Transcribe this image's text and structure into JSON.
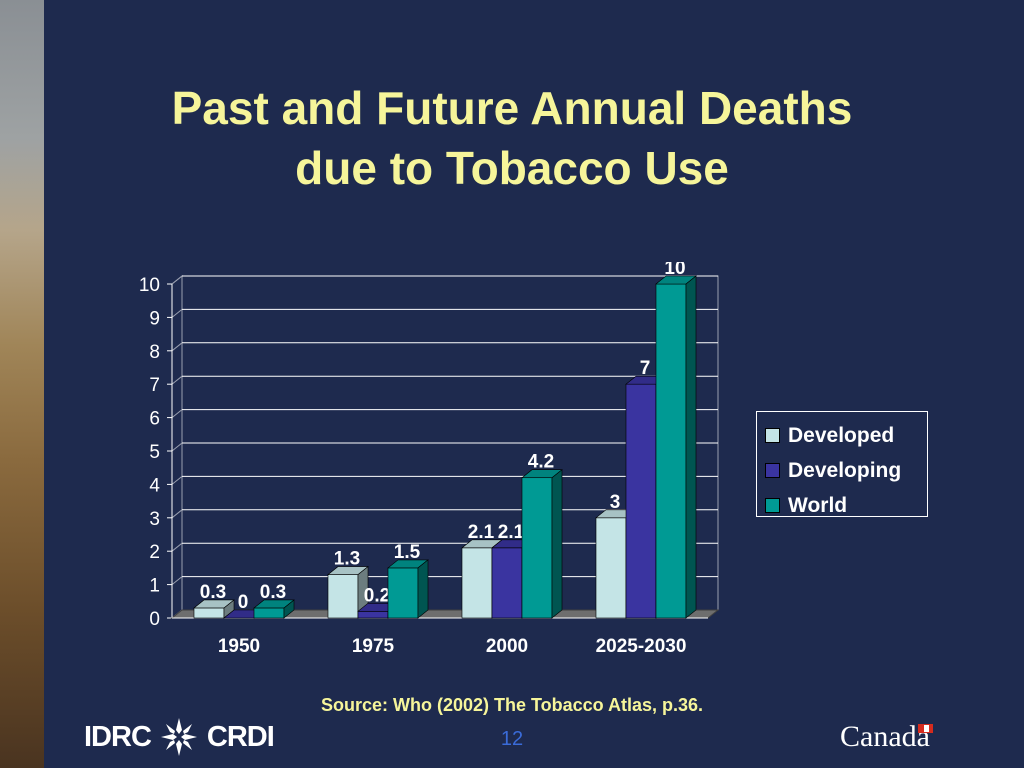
{
  "slide": {
    "title_line1": "Past and Future Annual Deaths",
    "title_line2": "due to Tobacco Use",
    "source": "Source:  Who (2002) The Tobacco Atlas, p.36.",
    "page_number": "12",
    "logo_left_text_1": "IDRC",
    "logo_left_text_2": "CRDI",
    "logo_right_text": "Canada"
  },
  "chart_data": {
    "type": "bar",
    "categories": [
      "1950",
      "1975",
      "2000",
      "2025-2030"
    ],
    "series": [
      {
        "name": "Developed",
        "color": "#c4e4e6",
        "values": [
          0.3,
          1.3,
          2.1,
          3
        ]
      },
      {
        "name": "Developing",
        "color": "#3a34a0",
        "values": [
          0,
          0.2,
          2.1,
          7
        ]
      },
      {
        "name": "World",
        "color": "#009a94",
        "values": [
          0.3,
          1.5,
          4.2,
          10
        ]
      }
    ],
    "data_labels": [
      [
        "0.3",
        "0",
        "0.3"
      ],
      [
        "1.3",
        "0.2",
        "1.5"
      ],
      [
        "2.1",
        "2.1",
        "4.2"
      ],
      [
        "3",
        "7",
        "10"
      ]
    ],
    "yticks": [
      "0",
      "1",
      "2",
      "3",
      "4",
      "5",
      "6",
      "7",
      "8",
      "9",
      "10"
    ],
    "ylim": [
      0,
      10
    ],
    "grid": true,
    "legend_position": "right",
    "title": "",
    "xlabel": "",
    "ylabel": ""
  }
}
